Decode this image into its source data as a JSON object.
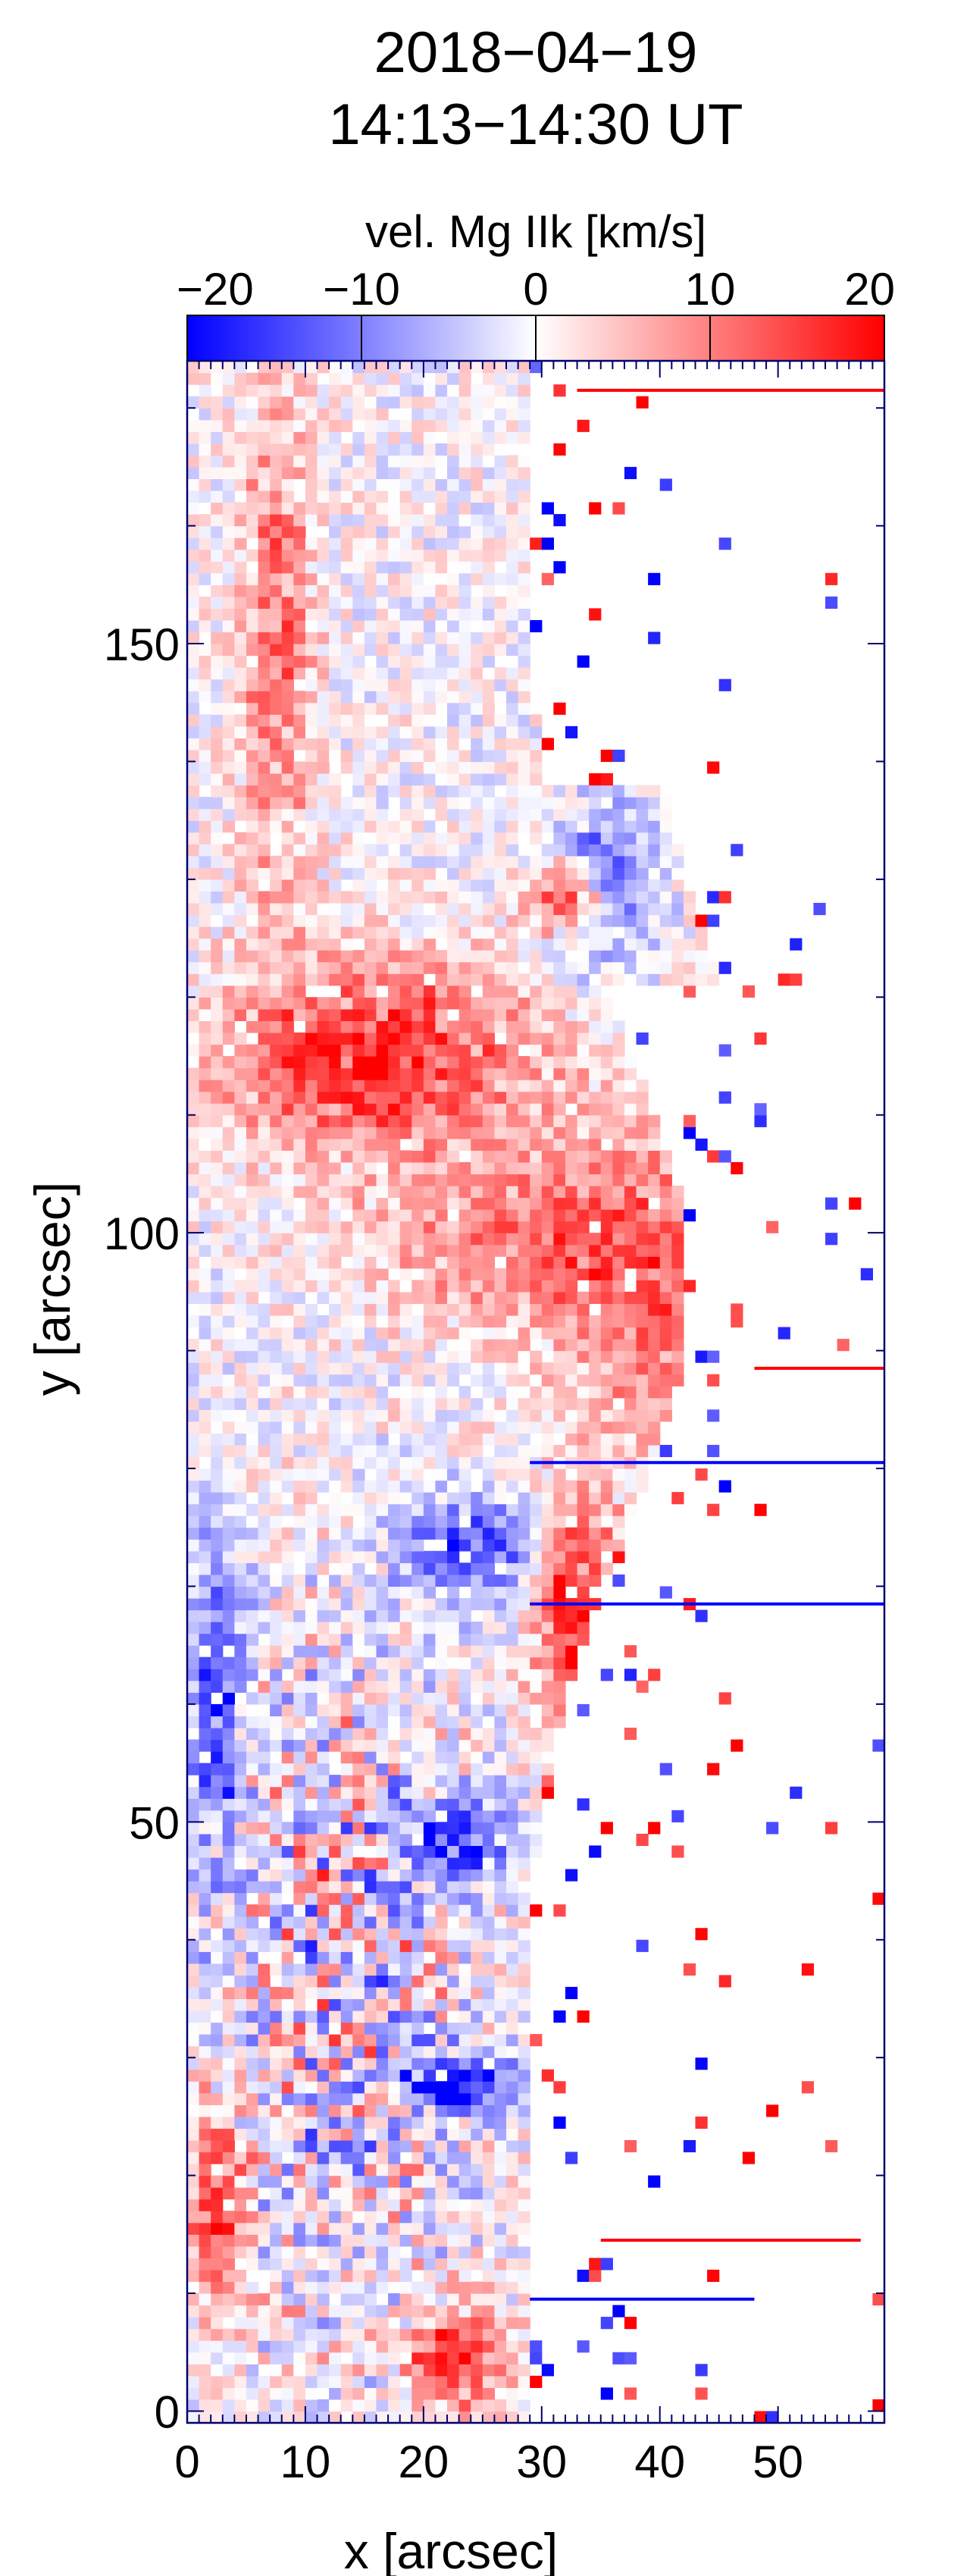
{
  "chart_data": {
    "type": "heatmap",
    "title_line1": "2018−04−19",
    "title_line2": "14:13−14:30 UT",
    "colorbar": {
      "label": "vel. Mg IIk [km/s]",
      "range": [
        -20,
        20
      ],
      "tick_values": [
        -20,
        -10,
        0,
        10,
        20
      ],
      "tick_labels": [
        "−20",
        "−10",
        "0",
        "10",
        "20"
      ],
      "colors": {
        "negative": "#0000ff",
        "zero": "#ffffff",
        "positive": "#ff0000"
      }
    },
    "xlabel": "x [arcsec]",
    "ylabel": "y [arcsec]",
    "xlim": [
      0,
      59
    ],
    "ylim": [
      -1,
      174
    ],
    "x_ticks": [
      0,
      10,
      20,
      30,
      40,
      50
    ],
    "x_tick_labels": [
      "0",
      "10",
      "20",
      "30",
      "40",
      "50"
    ],
    "y_ticks": [
      0,
      50,
      100,
      150
    ],
    "y_tick_labels": [
      "0",
      "50",
      "100",
      "150"
    ],
    "blank_color": "#ffffff",
    "grid": false,
    "cell_size": {
      "dx": 1,
      "dy": 1
    },
    "features": [
      {
        "kind": "redshift",
        "x": [
          1,
          30
        ],
        "y": [
          106,
          123
        ],
        "v": 17
      },
      {
        "kind": "redshift",
        "x": [
          14,
          40
        ],
        "y": [
          92,
          106
        ],
        "v": 10
      },
      {
        "kind": "redshift",
        "x": [
          4,
          10
        ],
        "y": [
          125,
          173
        ],
        "v": 12
      },
      {
        "kind": "redshift",
        "x": [
          28,
          35
        ],
        "y": [
          125,
          131
        ],
        "v": 19
      },
      {
        "kind": "redshift",
        "x": [
          30,
          52
        ],
        "y": [
          80,
          110
        ],
        "v": 12
      },
      {
        "kind": "blueshift",
        "x": [
          45,
          58
        ],
        "y": [
          92,
          107
        ],
        "v": -19
      },
      {
        "kind": "blueshift",
        "x": [
          0,
          4
        ],
        "y": [
          45,
          75
        ],
        "v": -16
      },
      {
        "kind": "blueshift",
        "x": [
          17,
          29
        ],
        "y": [
          68,
          77
        ],
        "v": -16
      },
      {
        "kind": "blueshift",
        "x": [
          17,
          27
        ],
        "y": [
          44,
          52
        ],
        "v": -19
      },
      {
        "kind": "blueshift",
        "x": [
          17,
          28
        ],
        "y": [
          25,
          30
        ],
        "v": -19
      },
      {
        "kind": "blueshift",
        "x": [
          30,
          39
        ],
        "y": [
          122,
          136
        ],
        "v": -13
      },
      {
        "kind": "redshift",
        "x": [
          29,
          36
        ],
        "y": [
          55,
          78
        ],
        "v": 19
      },
      {
        "kind": "redshift",
        "x": [
          34,
          45
        ],
        "y": [
          43,
          58
        ],
        "v": 17
      },
      {
        "kind": "redshift",
        "x": [
          18,
          27
        ],
        "y": [
          0,
          8
        ],
        "v": 18
      },
      {
        "kind": "redshift",
        "x": [
          0,
          4
        ],
        "y": [
          8,
          25
        ],
        "v": 16
      },
      {
        "kind": "mixed",
        "x": [
          36,
          58
        ],
        "y": [
          62,
          80
        ],
        "v": 0
      },
      {
        "kind": "mixed",
        "x": [
          0,
          25
        ],
        "y": [
          0,
          70
        ],
        "v": 3
      }
    ],
    "strips": [
      {
        "y": 80.5,
        "x": [
          29,
          59
        ],
        "v": -20
      },
      {
        "y": 68.5,
        "x": [
          29,
          59
        ],
        "v": -20
      },
      {
        "y": 88.5,
        "x": [
          48,
          59
        ],
        "v": 20
      },
      {
        "y": 14.5,
        "x": [
          35,
          57
        ],
        "v": 20
      },
      {
        "y": 9.5,
        "x": [
          29,
          48
        ],
        "v": -20
      },
      {
        "y": 171.5,
        "x": [
          33,
          59
        ],
        "v": 20
      }
    ]
  }
}
